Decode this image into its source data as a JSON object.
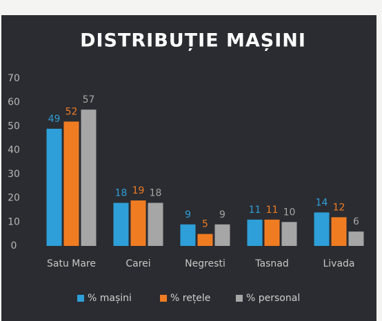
{
  "chart_data": {
    "type": "bar",
    "title": "DISTRIBUȚIE MAȘINI",
    "categories": [
      "Satu Mare",
      "Carei",
      "Negresti",
      "Tasnad",
      "Livada"
    ],
    "series": [
      {
        "name": "% mașini",
        "color": "#2e9fd8",
        "values": [
          49,
          18,
          9,
          11,
          14
        ]
      },
      {
        "name": "% rețele",
        "color": "#f07c22",
        "values": [
          52,
          19,
          5,
          11,
          12
        ]
      },
      {
        "name": "% personal",
        "color": "#a6a6a6",
        "values": [
          57,
          18,
          9,
          10,
          6
        ]
      }
    ],
    "ylim": [
      0,
      70
    ],
    "yticks": [
      0,
      10,
      20,
      30,
      40,
      50,
      60,
      70
    ],
    "grid": false,
    "legend": "bottom"
  }
}
